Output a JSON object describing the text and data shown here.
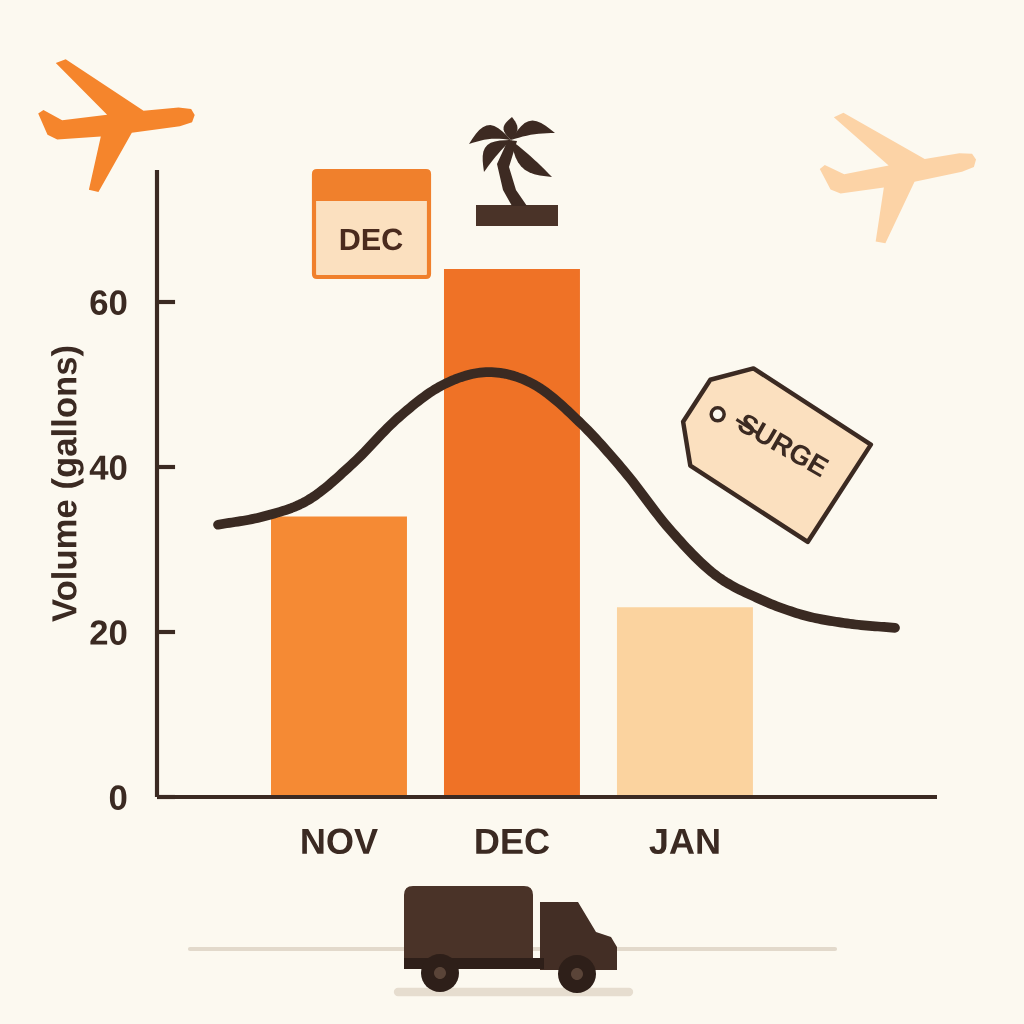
{
  "chart_data": [
    {
      "type": "line",
      "categories": [
        null,
        null,
        null,
        null,
        null,
        null,
        null,
        null,
        null,
        null,
        null,
        null,
        null,
        null,
        null,
        null
      ],
      "values": [
        33,
        34,
        36,
        40.5,
        46,
        50,
        51.5,
        50,
        45.5,
        39.5,
        32.5,
        27,
        24,
        22,
        21,
        20.5
      ],
      "color": "#3a2a22",
      "ylim": [
        0,
        76
      ],
      "tick_labels": false
    },
    {
      "type": "bar",
      "ylabel": "Volume (gallons)",
      "categories": [
        "NOV",
        "DEC",
        "JAN"
      ],
      "values": [
        34,
        64,
        23
      ],
      "colors": [
        "#f58a34",
        "#ef7226",
        "#fbd39f"
      ],
      "ylim": [
        0,
        76
      ],
      "yticks": [
        0,
        20,
        40,
        60
      ],
      "annotations": [
        "DEC",
        "SURGE"
      ]
    }
  ]
}
